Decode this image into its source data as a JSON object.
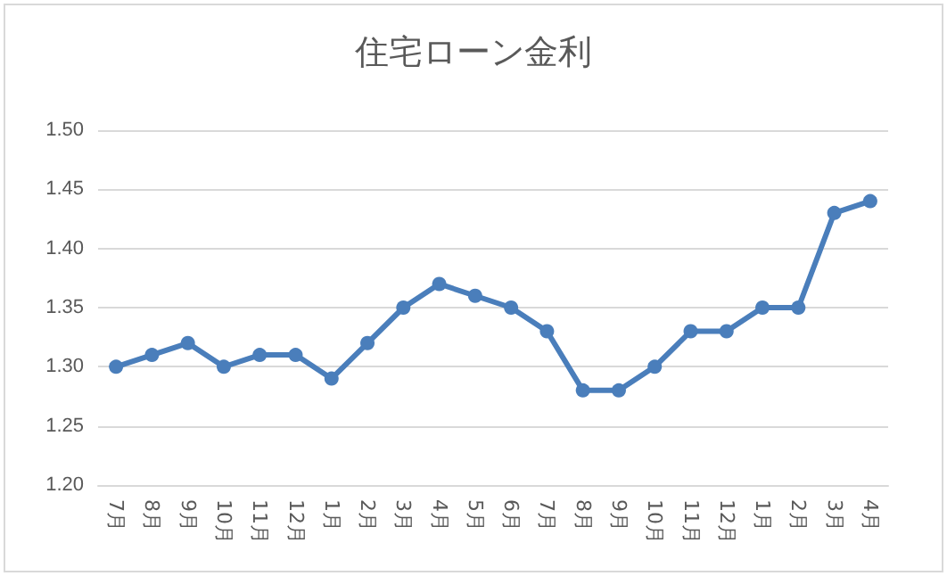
{
  "chart_data": {
    "type": "line",
    "title": "住宅ローン金利",
    "categories": [
      "7月",
      "8月",
      "9月",
      "10月",
      "11月",
      "12月",
      "1月",
      "2月",
      "3月",
      "4月",
      "5月",
      "6月",
      "7月",
      "8月",
      "9月",
      "10月",
      "11月",
      "12月",
      "1月",
      "2月",
      "3月",
      "4月"
    ],
    "series": [
      {
        "color": "#4a7ebb",
        "values": [
          1.3,
          1.31,
          1.32,
          1.3,
          1.31,
          1.31,
          1.29,
          1.32,
          1.35,
          1.37,
          1.36,
          1.35,
          1.33,
          1.28,
          1.28,
          1.3,
          1.33,
          1.33,
          1.35,
          1.35,
          1.43,
          1.44
        ]
      }
    ],
    "ylim": [
      1.2,
      1.5
    ],
    "yticks": [
      {
        "value": 1.2,
        "label": "1.20"
      },
      1.25,
      {
        "value": 1.3,
        "label": "1.30"
      },
      1.35,
      {
        "value": 1.4,
        "label": "1.40"
      },
      1.45,
      {
        "value": 1.5,
        "label": "1.50"
      }
    ],
    "grid": "y",
    "marker": "circle",
    "line_style": "solid"
  }
}
